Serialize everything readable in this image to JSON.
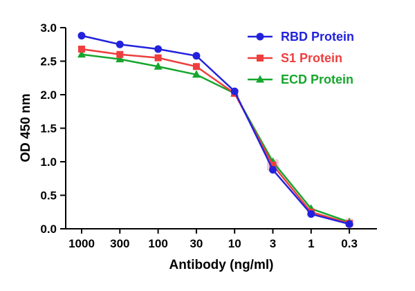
{
  "chart_data": {
    "type": "line",
    "title": "",
    "xlabel": "Antibody (ng/ml)",
    "ylabel": "OD 450 nm",
    "x_scale": "log-categorical",
    "categories": [
      "1000",
      "300",
      "100",
      "30",
      "10",
      "3",
      "1",
      "0.3"
    ],
    "ylim": [
      0,
      3
    ],
    "yticks": [
      0.0,
      0.5,
      1.0,
      1.5,
      2.0,
      2.5,
      3.0
    ],
    "grid": false,
    "legend_position": "top-right",
    "axis_color": "#000000",
    "series": [
      {
        "name": "RBD Protein",
        "color": "#2222dd",
        "marker": "circle",
        "values": [
          2.88,
          2.75,
          2.68,
          2.58,
          2.05,
          0.88,
          0.22,
          0.07
        ]
      },
      {
        "name": "S1 Protein",
        "color": "#ee3e3e",
        "marker": "square",
        "values": [
          2.68,
          2.6,
          2.55,
          2.42,
          2.02,
          0.95,
          0.25,
          0.08
        ]
      },
      {
        "name": "ECD Protein",
        "color": "#16a62c",
        "marker": "triangle",
        "values": [
          2.6,
          2.53,
          2.42,
          2.3,
          2.02,
          1.0,
          0.3,
          0.1
        ]
      }
    ],
    "highlights": [
      {
        "index": 5,
        "value": 0.95,
        "color": "#f9c9de",
        "size": 17
      },
      {
        "index": 7,
        "value": 0.1,
        "color": "#fbdcea",
        "size": 12
      }
    ]
  }
}
